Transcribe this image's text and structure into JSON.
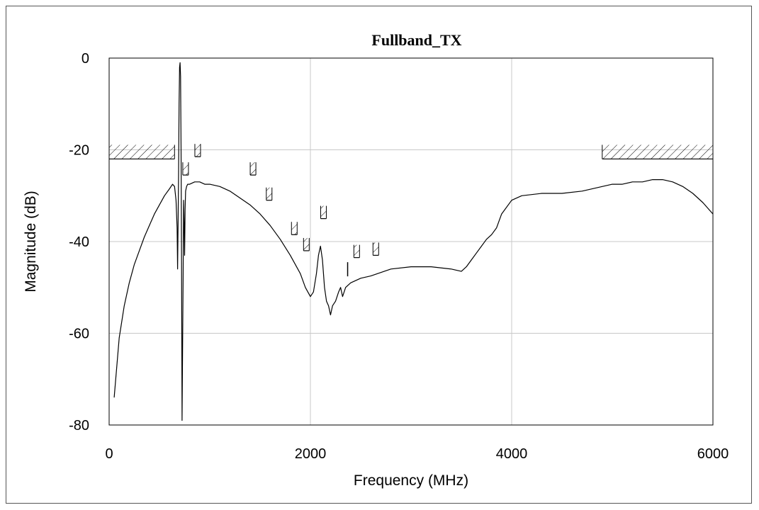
{
  "chart_data": {
    "type": "line",
    "title": "Fullband_TX",
    "xlabel": "Frequency (MHz)",
    "ylabel": "Magnitude (dB)",
    "xlim": [
      0,
      6000
    ],
    "ylim": [
      -80,
      0
    ],
    "x_ticks": [
      0,
      2000,
      4000,
      6000
    ],
    "y_ticks": [
      0,
      -20,
      -40,
      -60,
      -80
    ],
    "x_tick_labels": [
      "0",
      "2000",
      "4000",
      "6000"
    ],
    "y_tick_labels": [
      "0",
      "-20",
      "-40",
      "-60",
      "-80"
    ],
    "grid": true,
    "series": [
      {
        "color": "#000000",
        "x": [
          50,
          100,
          150,
          200,
          250,
          300,
          350,
          400,
          450,
          500,
          550,
          600,
          630,
          650,
          665,
          675,
          680,
          685,
          690,
          695,
          700,
          705,
          710,
          715,
          720,
          725,
          730,
          735,
          740,
          745,
          750,
          755,
          760,
          770,
          780,
          800,
          850,
          900,
          950,
          1000,
          1100,
          1200,
          1300,
          1400,
          1500,
          1600,
          1700,
          1800,
          1900,
          1950,
          2000,
          2030,
          2060,
          2080,
          2100,
          2120,
          2140,
          2160,
          2180,
          2200,
          2220,
          2250,
          2280,
          2300,
          2320,
          2350,
          2400,
          2500,
          2600,
          2800,
          3000,
          3200,
          3400,
          3500,
          3550,
          3600,
          3650,
          3700,
          3750,
          3800,
          3850,
          3900,
          4000,
          4100,
          4300,
          4500,
          4700,
          4900,
          5000,
          5100,
          5200,
          5300,
          5400,
          5500,
          5600,
          5700,
          5800,
          5900,
          6000
        ],
        "y": [
          -74,
          -61,
          -54,
          -49,
          -45,
          -42,
          -39,
          -36.5,
          -34,
          -32,
          -30,
          -28.5,
          -27.5,
          -28,
          -31,
          -37,
          -46,
          -36,
          -25,
          -10,
          -2,
          -1,
          -4,
          -20,
          -45,
          -79,
          -62,
          -48,
          -31,
          -36,
          -43,
          -33,
          -29,
          -28,
          -27.5,
          -27.5,
          -27,
          -27,
          -27.5,
          -27.5,
          -28,
          -29,
          -30.5,
          -32,
          -34,
          -36.5,
          -39.5,
          -43,
          -47,
          -50,
          -52,
          -51,
          -47,
          -43,
          -41,
          -44,
          -50,
          -53,
          -54,
          -56,
          -54,
          -53,
          -51,
          -50,
          -52,
          -50,
          -49,
          -48,
          -47.5,
          -46,
          -45.5,
          -45.5,
          -46,
          -46.5,
          -45.5,
          -44,
          -42.5,
          -41,
          -39.5,
          -38.5,
          -37,
          -34,
          -31,
          -30,
          -29.5,
          -29.5,
          -29,
          -28,
          -27.5,
          -27.5,
          -27,
          -27,
          -26.5,
          -26.5,
          -27,
          -28,
          -29.5,
          -31.5,
          -34
        ]
      }
    ],
    "masks": [
      {
        "type": "hatched-band",
        "x": [
          0,
          650
        ],
        "y": -22
      },
      {
        "type": "hatched-band",
        "x": [
          4900,
          6000
        ],
        "y": -22
      },
      {
        "type": "marker",
        "x": 760,
        "y": -25.5
      },
      {
        "type": "marker",
        "x": 880,
        "y": -21.5
      },
      {
        "type": "marker",
        "x": 1430,
        "y": -25.5
      },
      {
        "type": "marker",
        "x": 1590,
        "y": -31
      },
      {
        "type": "marker",
        "x": 1840,
        "y": -38.5
      },
      {
        "type": "marker",
        "x": 1960,
        "y": -42
      },
      {
        "type": "marker",
        "x": 2130,
        "y": -35
      },
      {
        "type": "line-marker",
        "x": 2370,
        "y": -44.5
      },
      {
        "type": "marker",
        "x": 2460,
        "y": -43.5
      },
      {
        "type": "marker",
        "x": 2650,
        "y": -43
      }
    ]
  }
}
